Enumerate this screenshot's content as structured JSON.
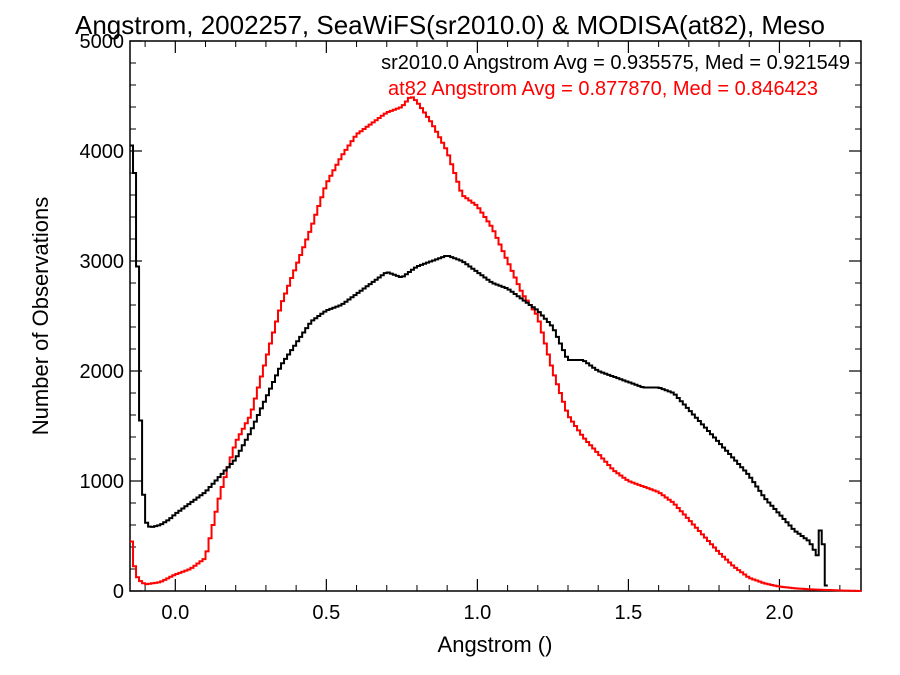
{
  "chart_data": {
    "type": "line",
    "title": "Angstrom, 2002257, SeaWiFS(sr2010.0) & MODISA(at82), Meso",
    "xlabel": "Angstrom ()",
    "ylabel": "Number of Observations",
    "xlim": [
      -0.15,
      2.27
    ],
    "ylim": [
      0,
      5000
    ],
    "xticks": [
      {
        "value": 0.0,
        "label": "0.0"
      },
      {
        "value": 0.5,
        "label": "0.5"
      },
      {
        "value": 1.0,
        "label": "1.0"
      },
      {
        "value": 1.5,
        "label": "1.5"
      },
      {
        "value": 2.0,
        "label": "2.0"
      }
    ],
    "yticks": [
      {
        "value": 0,
        "label": "0"
      },
      {
        "value": 1000,
        "label": "1000"
      },
      {
        "value": 2000,
        "label": "2000"
      },
      {
        "value": 3000,
        "label": "3000"
      },
      {
        "value": 4000,
        "label": "4000"
      },
      {
        "value": 5000,
        "label": "5000"
      }
    ],
    "grid": false,
    "series": [
      {
        "name": "sr2010.0",
        "color": "#000000",
        "x": [
          -0.15,
          -0.14,
          -0.13,
          -0.12,
          -0.11,
          -0.1,
          -0.09,
          -0.08,
          -0.05,
          -0.02,
          0.0,
          0.05,
          0.1,
          0.15,
          0.2,
          0.25,
          0.3,
          0.35,
          0.4,
          0.45,
          0.5,
          0.55,
          0.6,
          0.65,
          0.7,
          0.75,
          0.8,
          0.85,
          0.9,
          0.95,
          1.0,
          1.05,
          1.1,
          1.15,
          1.2,
          1.25,
          1.3,
          1.35,
          1.4,
          1.45,
          1.5,
          1.55,
          1.6,
          1.65,
          1.7,
          1.75,
          1.8,
          1.85,
          1.9,
          1.95,
          2.0,
          2.05,
          2.1,
          2.13,
          2.14,
          2.15
        ],
        "y": [
          4400,
          3700,
          3900,
          2000,
          1100,
          650,
          590,
          580,
          600,
          650,
          700,
          800,
          900,
          1050,
          1200,
          1450,
          1750,
          2050,
          2250,
          2450,
          2550,
          2600,
          2700,
          2800,
          2900,
          2850,
          2950,
          3000,
          3050,
          3000,
          2900,
          2800,
          2750,
          2650,
          2550,
          2400,
          2100,
          2100,
          2000,
          1950,
          1900,
          1850,
          1850,
          1800,
          1650,
          1500,
          1350,
          1200,
          1050,
          850,
          700,
          550,
          450,
          300,
          800,
          50
        ]
      },
      {
        "name": "at82",
        "color": "#ff0000",
        "x": [
          -0.15,
          -0.14,
          -0.13,
          -0.12,
          -0.1,
          -0.05,
          0.0,
          0.05,
          0.1,
          0.15,
          0.2,
          0.25,
          0.3,
          0.35,
          0.4,
          0.45,
          0.5,
          0.55,
          0.6,
          0.65,
          0.7,
          0.75,
          0.78,
          0.8,
          0.85,
          0.9,
          0.95,
          1.0,
          1.05,
          1.1,
          1.15,
          1.2,
          1.25,
          1.3,
          1.35,
          1.4,
          1.45,
          1.5,
          1.55,
          1.6,
          1.65,
          1.7,
          1.75,
          1.8,
          1.85,
          1.9,
          1.95,
          2.0,
          2.05,
          2.1,
          2.15,
          2.2,
          2.27
        ],
        "y": [
          600,
          300,
          150,
          100,
          60,
          80,
          150,
          200,
          300,
          900,
          1350,
          1600,
          2100,
          2600,
          2950,
          3300,
          3700,
          3950,
          4150,
          4250,
          4350,
          4400,
          4500,
          4450,
          4250,
          4000,
          3600,
          3500,
          3300,
          3000,
          2700,
          2500,
          2000,
          1600,
          1400,
          1250,
          1100,
          1000,
          950,
          900,
          800,
          650,
          500,
          350,
          220,
          120,
          70,
          40,
          25,
          15,
          10,
          5,
          0
        ]
      }
    ],
    "annotations": [
      {
        "text": "sr2010.0 Angstrom Avg = 0.935575, Med = 0.921549",
        "color": "#000000"
      },
      {
        "text": "at82 Angstrom Avg = 0.877870, Med = 0.846423",
        "color": "#ff0000"
      }
    ]
  }
}
